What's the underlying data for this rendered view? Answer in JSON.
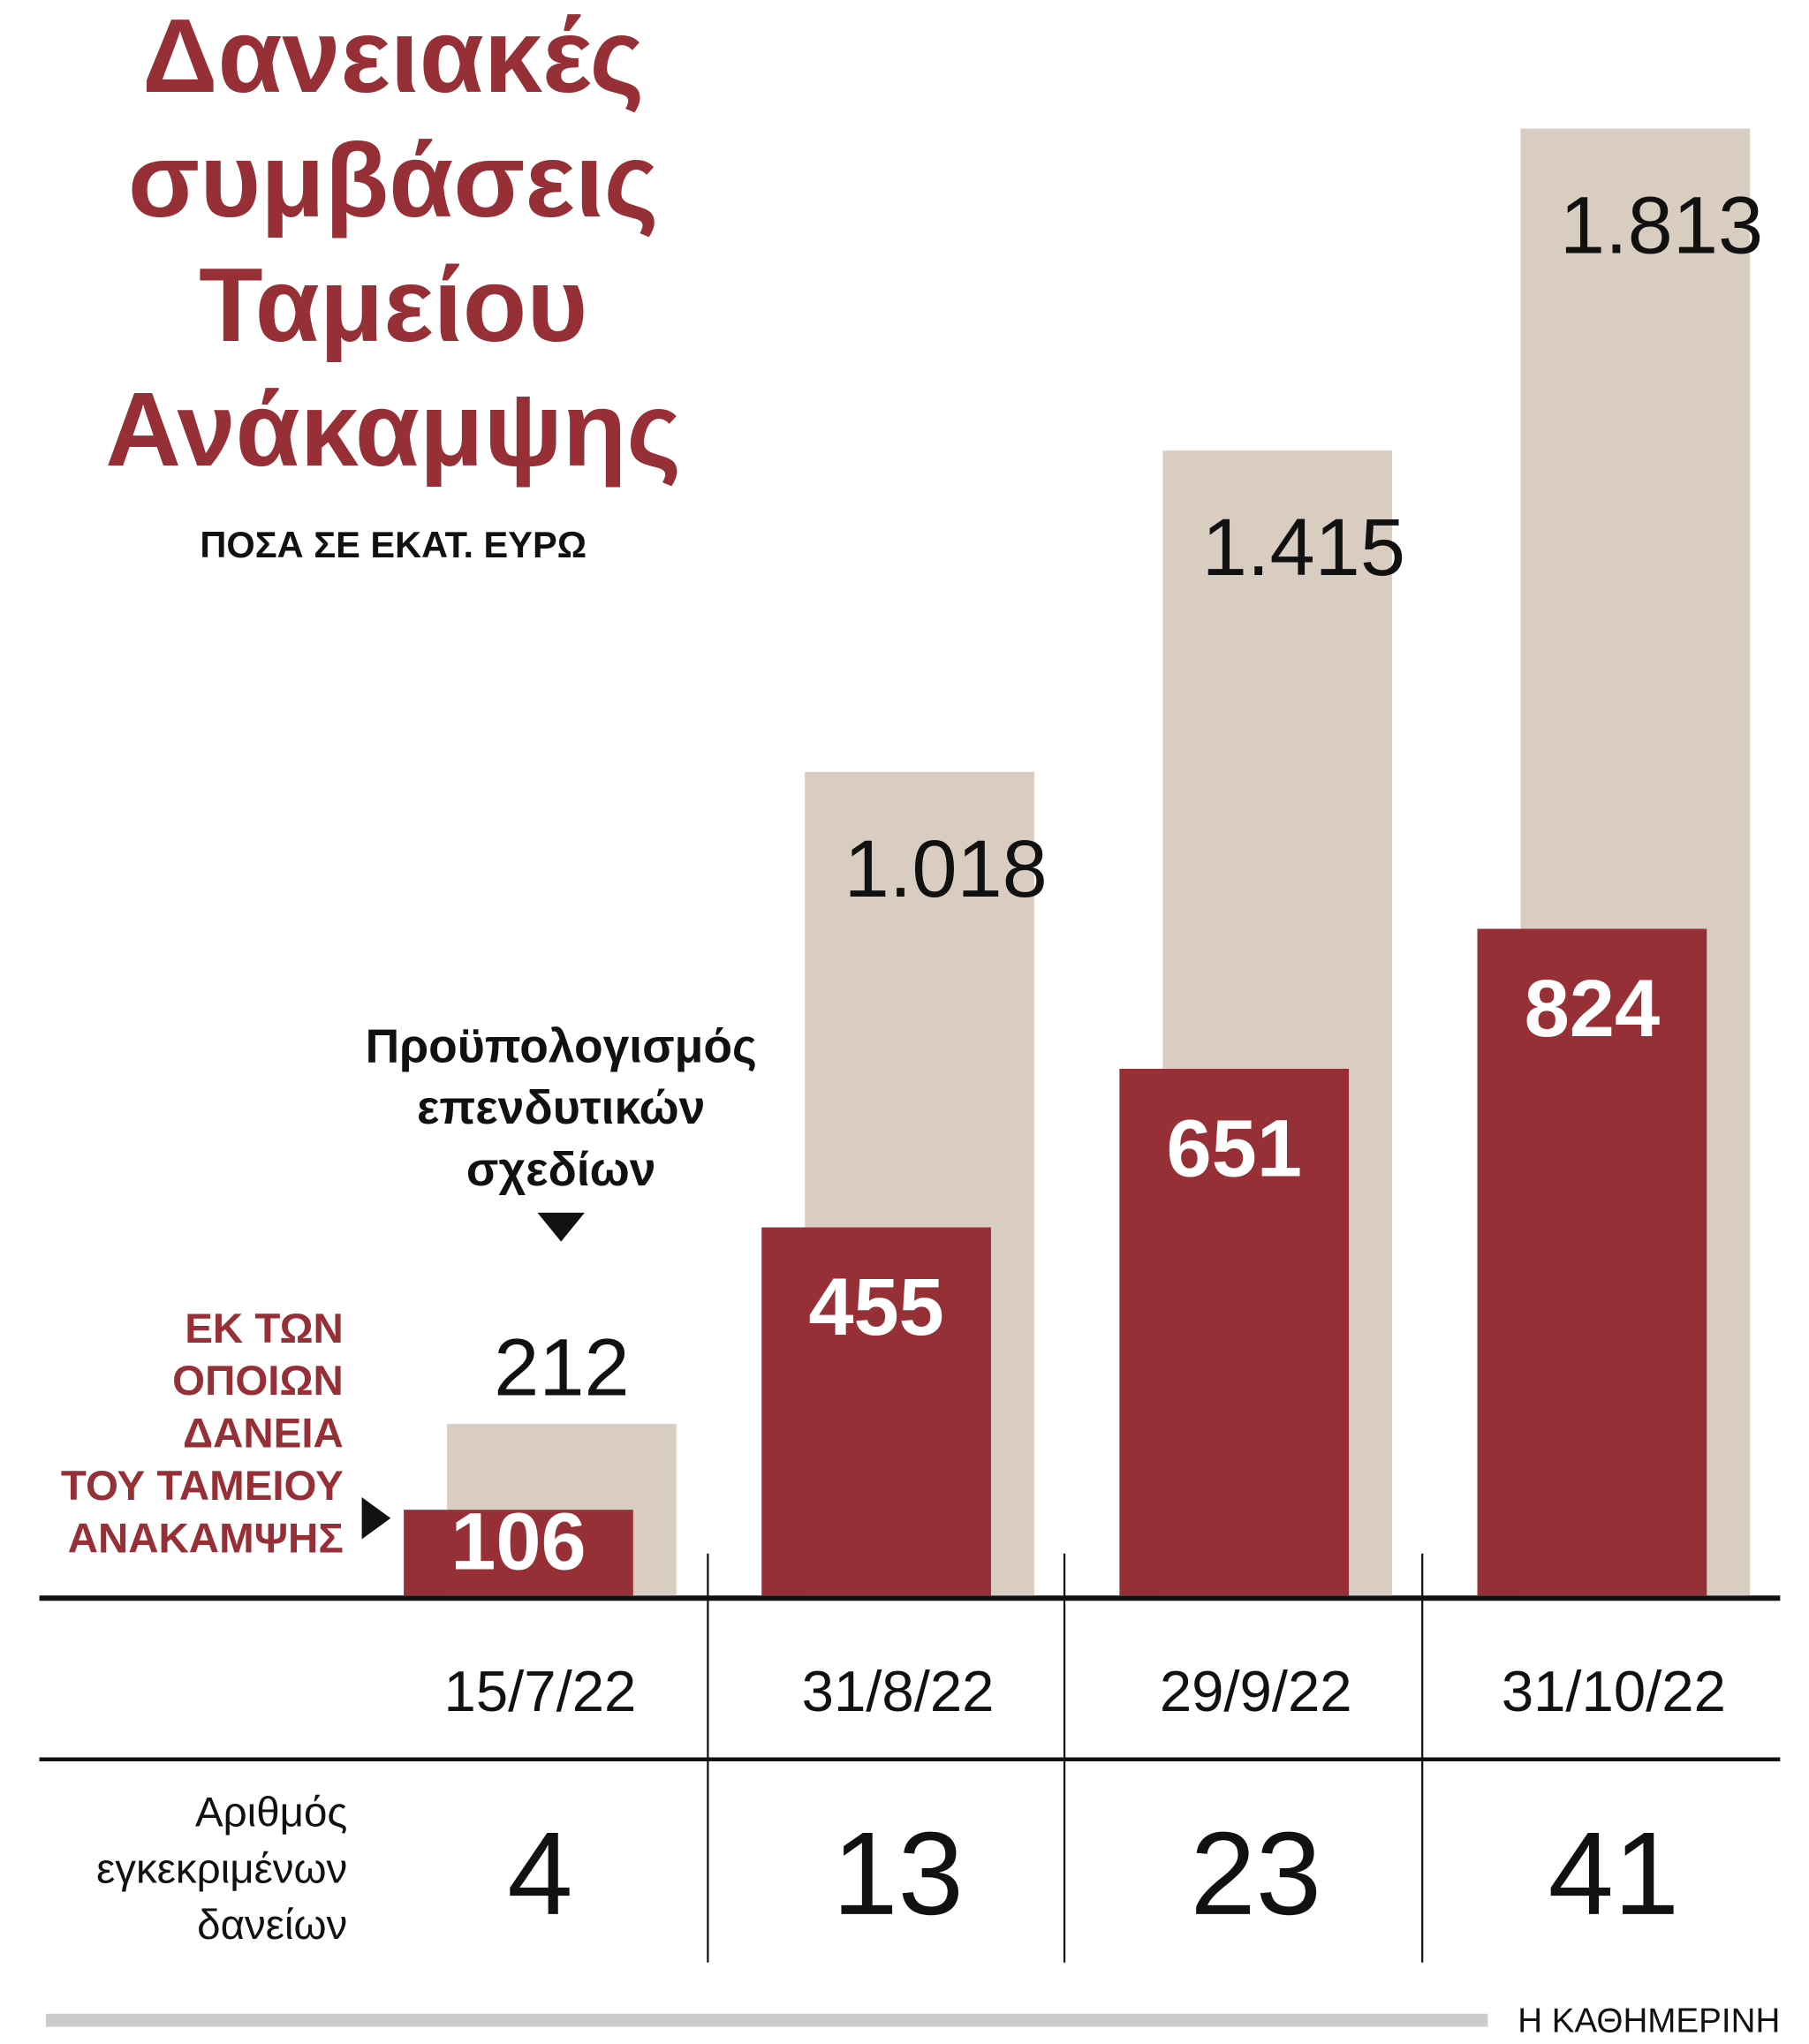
{
  "chart_data": {
    "type": "bar",
    "title": "Δανειακές\nσυμβάσεις\nΤαμείου\nΑνάκαμψης",
    "subtitle": "ΠΟΣΑ ΣΕ ΕΚΑΤ. ΕΥΡΩ",
    "categories": [
      "15/7/22",
      "31/8/22",
      "29/9/22",
      "31/10/22"
    ],
    "series": [
      {
        "name": "Προϋπολογισμός\nεπενδυτικών\nσχεδίων",
        "color": "#d9cdc1",
        "values": [
          212,
          1018,
          1415,
          1813
        ],
        "value_labels": [
          "212",
          "1.018",
          "1.415",
          "1.813"
        ]
      },
      {
        "name": "ΕΚ ΤΩΝ\nΟΠΟΙΩΝ\nΔΑΝΕΙΑ\nΤΟΥ ΤΑΜΕΙΟΥ\nΑΝΑΚΑΜΨΗΣ",
        "color": "#962f36",
        "values": [
          106,
          455,
          651,
          824
        ]
      }
    ],
    "ylim": [
      0,
      1813
    ],
    "counts": {
      "label": "Αριθμός\nεγκεκριμένων\nδανείων",
      "values": [
        4,
        13,
        23,
        41
      ]
    },
    "source": "Η ΚΑΘΗΜΕΡΙΝΗ"
  }
}
